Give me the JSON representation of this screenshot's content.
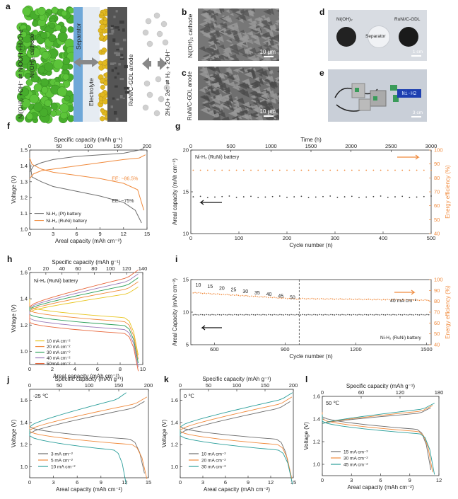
{
  "panel_labels": {
    "a": "a",
    "b": "b",
    "c": "c",
    "d": "d",
    "e": "e",
    "f": "f",
    "g": "g",
    "h": "h",
    "i": "i",
    "j": "j",
    "k": "k",
    "l": "l"
  },
  "panel_a": {
    "cathode_reaction": "Ni(OH)₂ +OH⁻ ⇌ NiOOH +H₂O+e⁻",
    "cathode_label": "Ni(OH)₂ cathode",
    "separator_label": "Separator",
    "electrolyte_label": "Electrolyte",
    "anode_label": "RuNi/C-GDL anode",
    "anode_reaction": "2H₂O+ 2e⁻ ⇌ H₂ + 2OH⁻"
  },
  "panel_b": {
    "side_label": "Ni(OH)₂ cathode",
    "scale": "10 μm"
  },
  "panel_c": {
    "side_label": "RuNi/C-GDL anode",
    "scale": "10 μm"
  },
  "panel_d": {
    "left": "Ni(OH)₂",
    "middle": "Separator",
    "right": "RuNi/C-GDL",
    "scale": "1 cm"
  },
  "panel_e": {
    "display": "Ni-H2",
    "scale": "3 cm"
  },
  "colors": {
    "black": "#3a3a3a",
    "orange": "#f08a3c",
    "green": "#2ca05a",
    "red": "#e8663a",
    "yellow": "#e8c51f",
    "gray": "#6e6e6e",
    "teal": "#2a9e9a",
    "purple": "#9a7ab8",
    "axis": "#333333"
  },
  "chart_data": [
    {
      "id": "f",
      "type": "line",
      "top_axis": {
        "label": "Specific capacity (mAh g⁻¹)",
        "ticks": [
          "0",
          "50",
          "100",
          "150",
          "200"
        ]
      },
      "xlabel": "Areal capacity (mAh cm⁻²)",
      "ylabel": "Voltage (V)",
      "xlim": [
        0,
        15
      ],
      "ylim": [
        1.0,
        1.5
      ],
      "xticks": [
        "0",
        "3",
        "6",
        "9",
        "12",
        "15"
      ],
      "yticks": [
        "1.0",
        "1.1",
        "1.2",
        "1.3",
        "1.4",
        "1.5"
      ],
      "annotations": [
        "EE: ~86.5%",
        "EE: ~75%"
      ],
      "legend": [
        "Ni-H₂ (Pt) battery",
        "Ni-H₂ (RuNi) battery"
      ],
      "series": [
        {
          "name": "Ni-H₂ (Pt) battery",
          "color": "gray",
          "charge": [
            [
              0,
              1.36
            ],
            [
              0.5,
              1.4
            ],
            [
              1.5,
              1.42
            ],
            [
              3,
              1.44
            ],
            [
              6,
              1.46
            ],
            [
              9,
              1.47
            ],
            [
              12,
              1.48
            ],
            [
              14,
              1.5
            ],
            [
              14.6,
              1.51
            ]
          ],
          "discharge": [
            [
              0,
              1.43
            ],
            [
              0.3,
              1.33
            ],
            [
              1.5,
              1.3
            ],
            [
              3,
              1.27
            ],
            [
              6,
              1.24
            ],
            [
              9,
              1.21
            ],
            [
              12,
              1.17
            ],
            [
              13.5,
              1.12
            ],
            [
              14.3,
              1.04
            ]
          ]
        },
        {
          "name": "Ni-H₂ (RuNi) battery",
          "color": "orange",
          "charge": [
            [
              0,
              1.32
            ],
            [
              0.5,
              1.35
            ],
            [
              1.5,
              1.37
            ],
            [
              3,
              1.38
            ],
            [
              6,
              1.4
            ],
            [
              9,
              1.42
            ],
            [
              12,
              1.44
            ],
            [
              14,
              1.45
            ],
            [
              14.8,
              1.47
            ]
          ],
          "discharge": [
            [
              0,
              1.45
            ],
            [
              0.3,
              1.41
            ],
            [
              1.5,
              1.38
            ],
            [
              3,
              1.36
            ],
            [
              6,
              1.34
            ],
            [
              9,
              1.32
            ],
            [
              12,
              1.29
            ],
            [
              13.8,
              1.25
            ],
            [
              14.6,
              1.12
            ]
          ]
        }
      ]
    },
    {
      "id": "g",
      "type": "scatter",
      "top_axis": {
        "label": "Time (h)",
        "ticks": [
          "0",
          "500",
          "1000",
          "1500",
          "2000",
          "2500",
          "3000"
        ]
      },
      "xlabel": "Cycle number (n)",
      "ylabel": "Areal capacity (mAh cm⁻²)",
      "y2label": "Energy efficiency (%)",
      "xlim": [
        0,
        500
      ],
      "ylim": [
        10,
        20
      ],
      "y2lim": [
        40,
        100
      ],
      "xticks": [
        "0",
        "100",
        "200",
        "300",
        "400",
        "500"
      ],
      "yticks": [
        "10",
        "15",
        "20"
      ],
      "y2ticks": [
        "40",
        "50",
        "60",
        "70",
        "80",
        "90",
        "100"
      ],
      "legend": [
        "Ni-H₂ (RuNi) battery"
      ],
      "series": [
        {
          "name": "Areal capacity",
          "color": "black",
          "axis": "left",
          "y_const": 14.4
        },
        {
          "name": "Energy efficiency",
          "color": "orange",
          "axis": "right",
          "y_const": 86
        }
      ]
    },
    {
      "id": "h",
      "type": "line",
      "top_axis": {
        "label": "Specific capacity (mAh g⁻¹)",
        "ticks": [
          "0",
          "20",
          "40",
          "60",
          "80",
          "100",
          "120",
          "140"
        ]
      },
      "xlabel": "Areal capacity (mAh cm⁻²)",
      "ylabel": "Voltage (V)",
      "xlim": [
        0,
        10
      ],
      "ylim": [
        0.9,
        1.6
      ],
      "xticks": [
        "0",
        "2",
        "4",
        "6",
        "8",
        "10"
      ],
      "yticks": [
        "1.0",
        "1.2",
        "1.4",
        "1.6"
      ],
      "legend": [
        "Ni-H₂ (RuNi) battery"
      ],
      "series": [
        {
          "name": "10 mA cm⁻²",
          "color": "yellow",
          "charge_end": 1.45,
          "discharge_start": 1.34
        },
        {
          "name": "20 mA cm⁻²",
          "color": "orange",
          "charge_end": 1.49,
          "discharge_start": 1.31
        },
        {
          "name": "30 mA cm⁻²",
          "color": "green",
          "charge_end": 1.52,
          "discharge_start": 1.28
        },
        {
          "name": "40 mA cm⁻²",
          "color": "purple",
          "charge_end": 1.55,
          "discharge_start": 1.25
        },
        {
          "name": "50 mA cm⁻²",
          "color": "red",
          "charge_end": 1.58,
          "discharge_start": 1.22
        }
      ]
    },
    {
      "id": "i",
      "type": "scatter",
      "xlabel": "Cycle number (n)",
      "ylabel": "Areal Capacity (mAh cm⁻²)",
      "y2label": "Energy efficiency (%)",
      "xlim": [
        500,
        1520
      ],
      "ylim": [
        5,
        15
      ],
      "y2lim": [
        40,
        100
      ],
      "xticks": [
        "600",
        "900",
        "1200",
        "1500"
      ],
      "yticks": [
        "5",
        "10",
        "15"
      ],
      "y2ticks": [
        "40",
        "50",
        "60",
        "70",
        "80",
        "90",
        "100"
      ],
      "rate_labels": [
        "10",
        "15",
        "20",
        "25",
        "30",
        "35",
        "40",
        "45",
        "50"
      ],
      "annotation": "40 mA cm⁻²",
      "legend": [
        "Ni-H₂ (RuNi) battery"
      ],
      "divider_x": 960
    },
    {
      "id": "j",
      "type": "line",
      "condition": "-25 ℃",
      "top_axis": {
        "label": "Specific capacity (mAh g⁻¹)",
        "ticks": [
          "0",
          "50",
          "100",
          "150",
          "200"
        ]
      },
      "xlabel": "Areal capacity (mAh cm⁻²)",
      "ylabel": "Voltage (V)",
      "xlim": [
        0,
        15
      ],
      "ylim": [
        0.9,
        1.7
      ],
      "xticks": [
        "0",
        "3",
        "6",
        "9",
        "12",
        "15"
      ],
      "yticks": [
        "1.0",
        "1.2",
        "1.4",
        "1.6"
      ],
      "series": [
        {
          "name": "3 mA cm⁻²",
          "color": "gray",
          "end": 14.5
        },
        {
          "name": "5 mA cm⁻²",
          "color": "orange",
          "end": 14.8
        },
        {
          "name": "10 mA cm⁻²",
          "color": "teal",
          "end": 12.2
        }
      ]
    },
    {
      "id": "k",
      "type": "line",
      "condition": "0 ℃",
      "top_axis": {
        "label": "Specific capacity (mAh g⁻¹)",
        "ticks": [
          "0",
          "50",
          "100",
          "150",
          "200"
        ]
      },
      "xlabel": "Areal capacity (mAh cm⁻²)",
      "ylabel": "Voltage (V)",
      "xlim": [
        0,
        15
      ],
      "ylim": [
        0.9,
        1.7
      ],
      "xticks": [
        "0",
        "3",
        "6",
        "9",
        "12",
        "15"
      ],
      "yticks": [
        "1.0",
        "1.2",
        "1.4",
        "1.6"
      ],
      "series": [
        {
          "name": "10 mA cm⁻²",
          "color": "gray",
          "end": 14.6
        },
        {
          "name": "20 mA cm⁻²",
          "color": "orange",
          "end": 14.8
        },
        {
          "name": "30 mA cm⁻²",
          "color": "teal",
          "end": 14.9
        }
      ]
    },
    {
      "id": "l",
      "type": "line",
      "condition": "50 ℃",
      "top_axis": {
        "label": "Specific capacity (mAh g⁻¹)",
        "ticks": [
          "0",
          "60",
          "120",
          "180"
        ]
      },
      "xlabel": "Areal capacity (mAh cm⁻²)",
      "ylabel": "Voltage (V)",
      "xlim": [
        0,
        13
      ],
      "ylim": [
        0.9,
        1.6
      ],
      "xticks": [
        "0",
        "3",
        "6",
        "9",
        "12"
      ],
      "yticks": [
        "1.0",
        "1.2",
        "1.4",
        "1.6"
      ],
      "series": [
        {
          "name": "15 mA cm⁻²",
          "color": "gray",
          "end": 12.1
        },
        {
          "name": "30 mA cm⁻²",
          "color": "orange",
          "end": 12.3
        },
        {
          "name": "45 mA cm⁻²",
          "color": "teal",
          "end": 12.5
        }
      ]
    }
  ]
}
